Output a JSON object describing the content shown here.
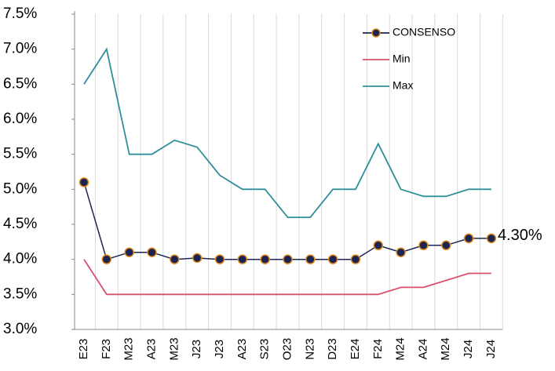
{
  "chart_data": {
    "type": "line",
    "categories": [
      "E23",
      "F23",
      "M23",
      "A23",
      "M23",
      "J23",
      "J23",
      "A23",
      "S23",
      "O23",
      "N23",
      "D23",
      "E24",
      "F24",
      "M24",
      "A24",
      "M24",
      "J24",
      "J24"
    ],
    "series": [
      {
        "name": "CONSENSO",
        "color": "#1c2452",
        "marker_edge": "#e08a1e",
        "marker": true,
        "values": [
          5.1,
          4.0,
          4.1,
          4.1,
          4.0,
          4.02,
          4.0,
          4.0,
          4.0,
          4.0,
          4.0,
          4.0,
          4.0,
          4.2,
          4.1,
          4.2,
          4.2,
          4.3,
          4.3
        ],
        "value_labels": [
          null,
          null,
          null,
          null,
          null,
          null,
          null,
          null,
          null,
          null,
          null,
          null,
          null,
          null,
          null,
          null,
          null,
          null,
          "4.30%"
        ]
      },
      {
        "name": "Min",
        "color": "#d9506e",
        "marker": false,
        "values": [
          4.0,
          3.5,
          3.5,
          3.5,
          3.5,
          3.5,
          3.5,
          3.5,
          3.5,
          3.5,
          3.5,
          3.5,
          3.5,
          3.5,
          3.6,
          3.6,
          3.7,
          3.8,
          3.8
        ]
      },
      {
        "name": "Max",
        "color": "#2f8f9a",
        "marker": false,
        "values": [
          6.5,
          7.0,
          5.5,
          5.5,
          5.7,
          5.6,
          5.2,
          5.0,
          5.0,
          4.6,
          4.6,
          5.0,
          5.0,
          5.65,
          5.0,
          4.9,
          4.9,
          5.0,
          5.0
        ]
      }
    ],
    "ylim": [
      3.0,
      7.5
    ],
    "yticks": [
      {
        "value": 3.0,
        "label": "3.0%"
      },
      {
        "value": 3.5,
        "label": "3.5%"
      },
      {
        "value": 4.0,
        "label": "4.0%"
      },
      {
        "value": 4.5,
        "label": "4.5%"
      },
      {
        "value": 5.0,
        "label": "5.0%"
      },
      {
        "value": 5.5,
        "label": "5.5%"
      },
      {
        "value": 6.0,
        "label": "6.0%"
      },
      {
        "value": 6.5,
        "label": "6.5%"
      },
      {
        "value": 7.0,
        "label": "7.0%"
      },
      {
        "value": 7.5,
        "label": "7.5%"
      }
    ],
    "grid": "x",
    "legend": "top-right"
  }
}
